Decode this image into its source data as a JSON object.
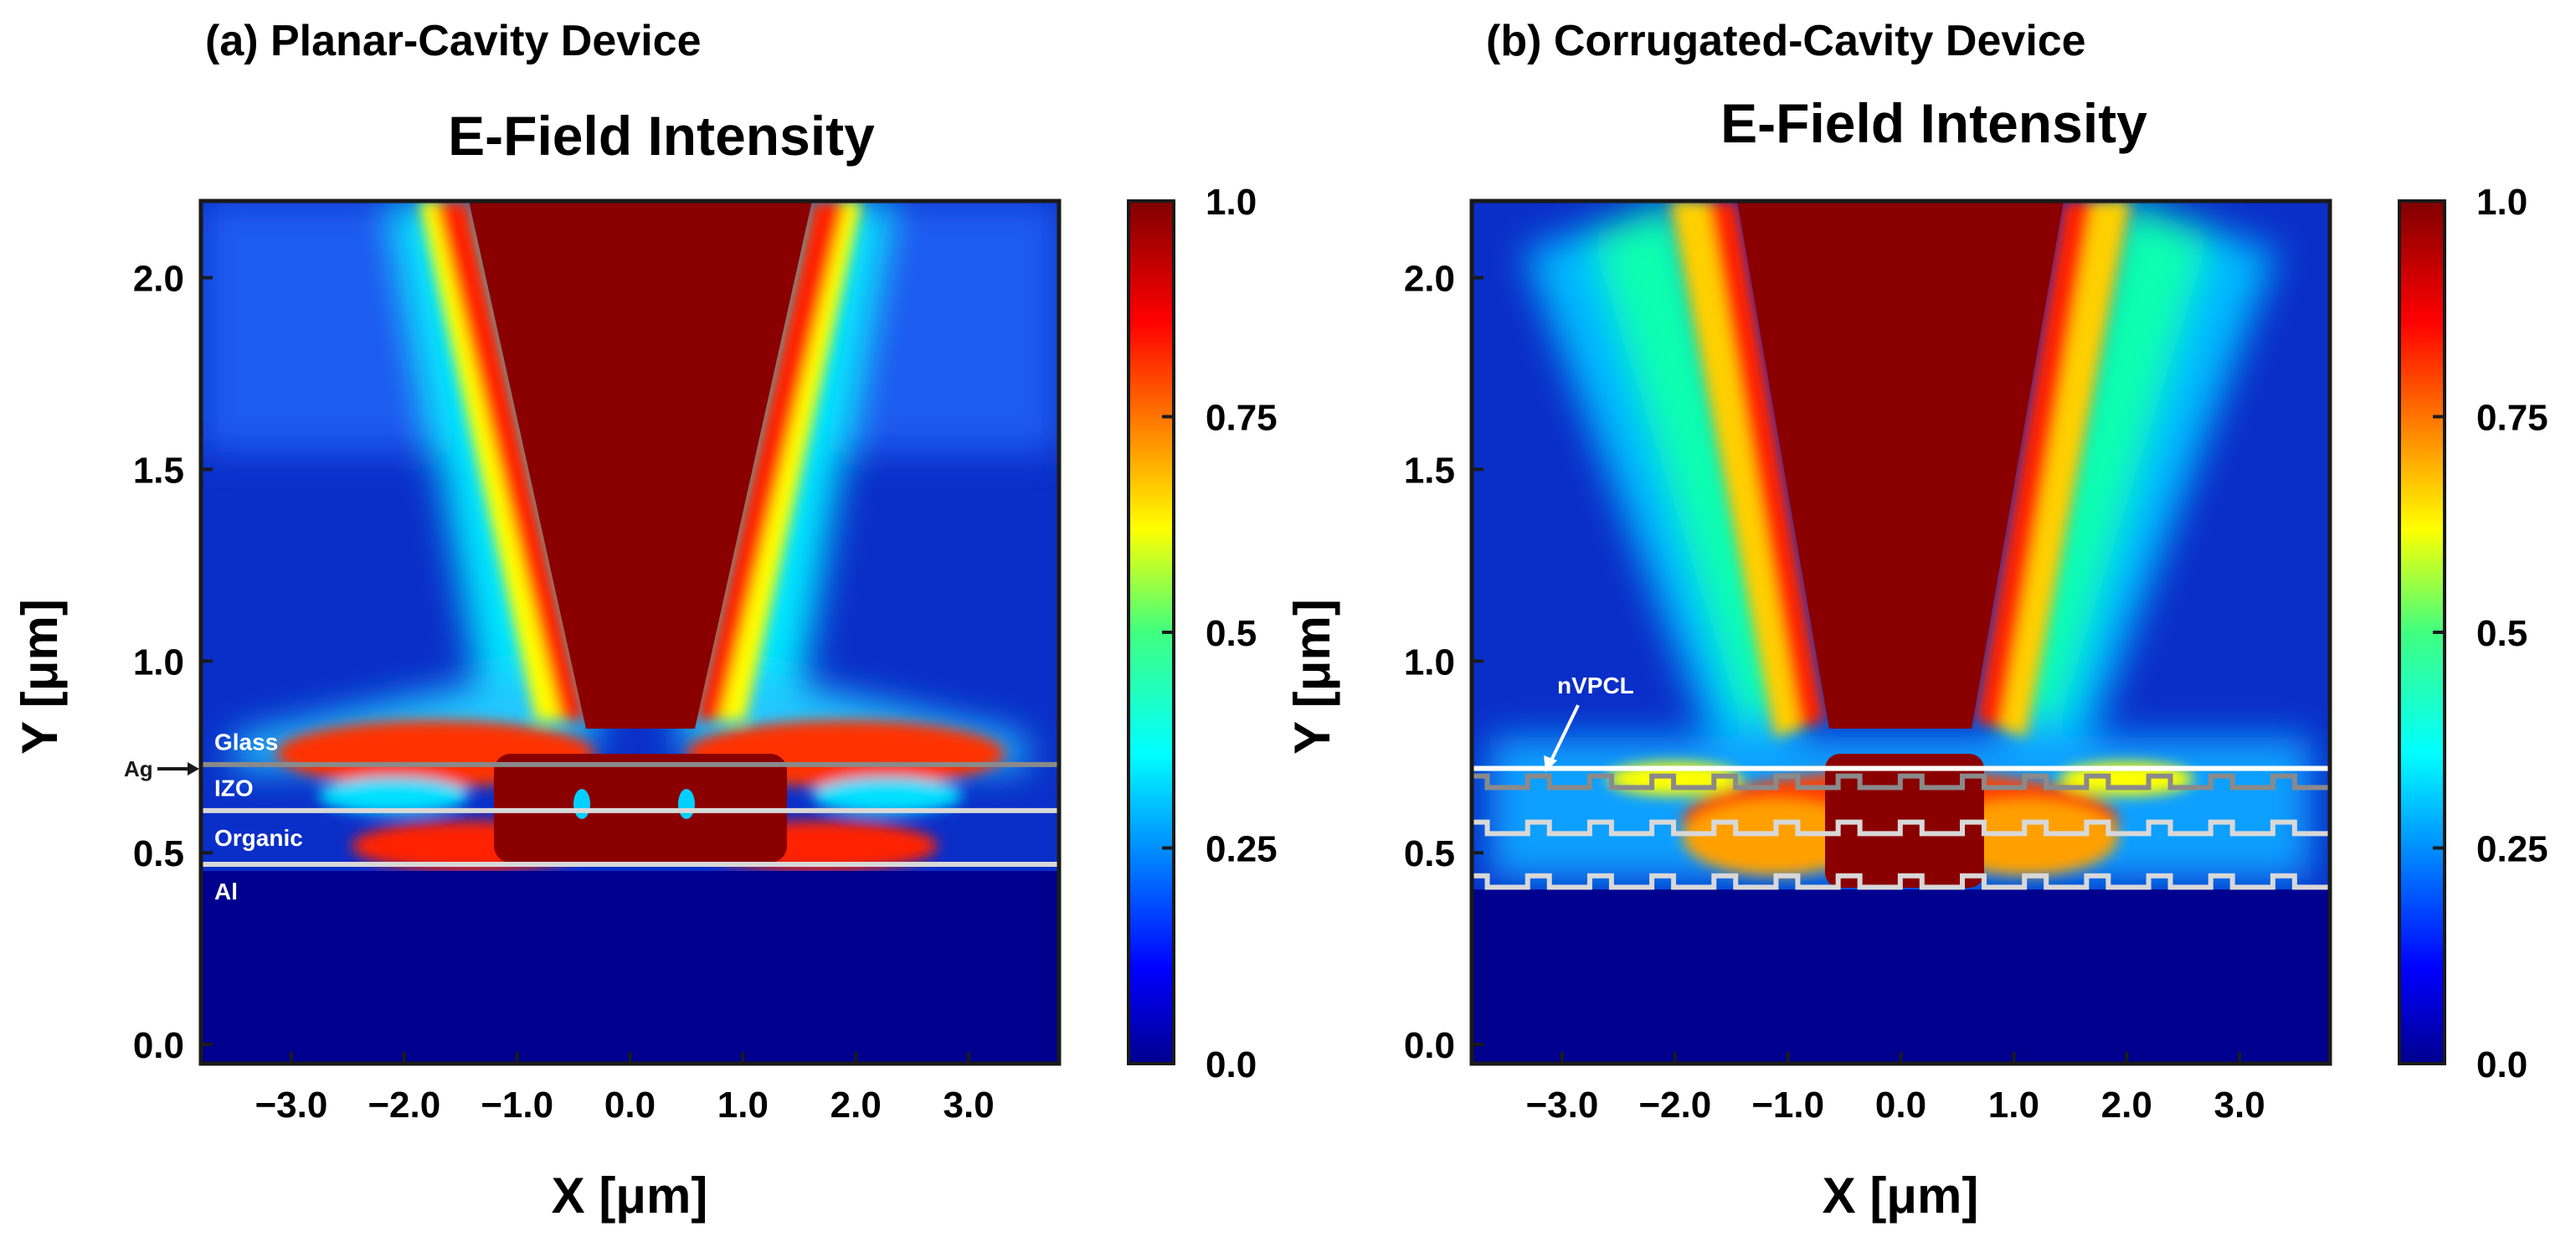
{
  "chart_data": [
    {
      "type": "heatmap",
      "panel_title": "(a) Planar-Cavity Device",
      "title": "E-Field Intensity",
      "xlabel": "X [μm]",
      "ylabel": "Y [μm]",
      "xlim": [
        -3.8,
        3.8
      ],
      "ylim": [
        -0.05,
        2.2
      ],
      "xticks": [
        -3.0,
        -2.0,
        -1.0,
        0.0,
        1.0,
        2.0,
        3.0
      ],
      "xtick_labels": [
        "−3.0",
        "−2.0",
        "−1.0",
        "0.0",
        "1.0",
        "2.0",
        "3.0"
      ],
      "yticks": [
        0.0,
        0.5,
        1.0,
        1.5,
        2.0
      ],
      "ytick_labels": [
        "0.0",
        "0.5",
        "1.0",
        "1.5",
        "2.0"
      ],
      "colorbar": {
        "range": [
          0.0,
          1.0
        ],
        "ticks": [
          0.0,
          0.25,
          0.5,
          0.75,
          1.0
        ],
        "tick_labels": [
          "0.0",
          "0.25",
          "0.5",
          "0.75",
          "1.0"
        ],
        "colormap": "jet"
      },
      "interfaces": [
        {
          "name": "Ag",
          "y": 0.73,
          "color": "#8a8a8a",
          "corrugated": false
        },
        {
          "name": "IZO/Organic",
          "y": 0.61,
          "color": "#d8d8d8",
          "corrugated": false
        },
        {
          "name": "Organic/Al",
          "y": 0.47,
          "color": "#d8d8d8",
          "corrugated": false
        }
      ],
      "layer_labels": [
        {
          "text": "Glass",
          "y": 0.79
        },
        {
          "text": "IZO",
          "y": 0.67
        },
        {
          "text": "Organic",
          "y": 0.54
        },
        {
          "text": "Al",
          "y": 0.4
        }
      ],
      "ag_marker": "Ag"
    },
    {
      "type": "heatmap",
      "panel_title": "(b) Corrugated-Cavity Device",
      "title": "E-Field Intensity",
      "xlabel": "X [μm]",
      "ylabel": "Y [μm]",
      "xlim": [
        -3.8,
        3.8
      ],
      "ylim": [
        -0.05,
        2.2
      ],
      "xticks": [
        -3.0,
        -2.0,
        -1.0,
        0.0,
        1.0,
        2.0,
        3.0
      ],
      "xtick_labels": [
        "−3.0",
        "−2.0",
        "−1.0",
        "0.0",
        "1.0",
        "2.0",
        "3.0"
      ],
      "yticks": [
        0.0,
        0.5,
        1.0,
        1.5,
        2.0
      ],
      "ytick_labels": [
        "0.0",
        "0.5",
        "1.0",
        "1.5",
        "2.0"
      ],
      "colorbar": {
        "range": [
          0.0,
          1.0
        ],
        "ticks": [
          0.0,
          0.25,
          0.5,
          0.75,
          1.0
        ],
        "tick_labels": [
          "0.0",
          "0.25",
          "0.5",
          "0.75",
          "1.0"
        ],
        "colormap": "jet"
      },
      "interfaces": [
        {
          "name": "nVPCL top",
          "y": 0.72,
          "color": "#ffffff",
          "corrugated": false
        },
        {
          "name": "Ag",
          "y": 0.7,
          "color": "#8a8a8a",
          "corrugated": true
        },
        {
          "name": "IZO/Organic",
          "y": 0.58,
          "color": "#d8d8d8",
          "corrugated": true
        },
        {
          "name": "Organic/Al",
          "y": 0.44,
          "color": "#d8d8d8",
          "corrugated": true
        }
      ],
      "corrugation": {
        "period_um": 0.55,
        "amplitude_um": 0.03
      },
      "annotation": {
        "text": "nVPCL",
        "target_x": -3.1,
        "target_y": 0.72
      }
    }
  ]
}
